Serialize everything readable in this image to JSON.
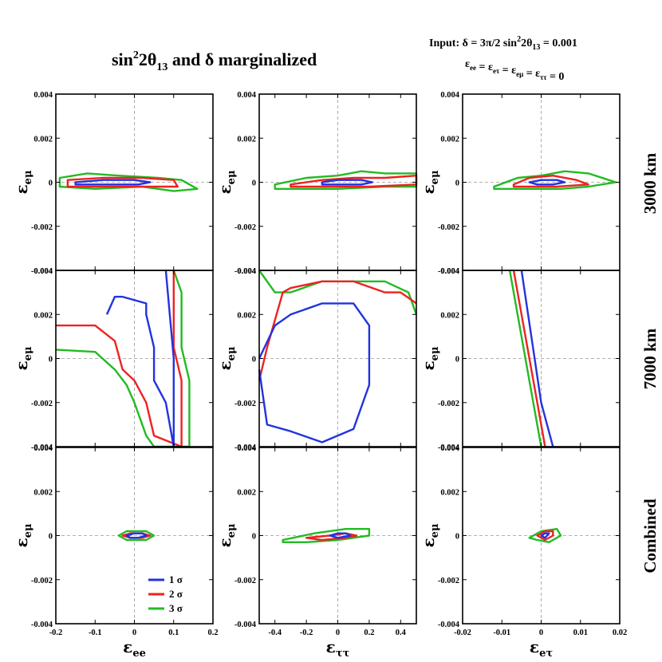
{
  "figure": {
    "title_main": "sin",
    "title_sup": "2",
    "title_mid": "2θ",
    "title_sub": "13",
    "title_end": " and δ marginalized",
    "input_line1_a": "Input:  δ =  3π/2     sin",
    "input_line1_sup": "2",
    "input_line1_b": "2θ",
    "input_line1_sub": "13",
    "input_line1_c": " = 0.001",
    "input_line2": "ε",
    "input_line2_parts": [
      {
        "t": "ε",
        "sub": "ee"
      },
      {
        "t": " = ε",
        "sub": "eτ"
      },
      {
        "t": " = ε",
        "sub": "eμ"
      },
      {
        "t": " = ε",
        "sub": "ττ"
      },
      {
        "t": " = 0",
        "sub": ""
      }
    ]
  },
  "chart_data": {
    "type": "contour",
    "y_label": {
      "base": "ε",
      "sub": "eμ"
    },
    "y_ticks": [
      "0.004",
      "0.002",
      "0",
      "-0.002",
      "-0.004"
    ],
    "y_lim": [
      -0.004,
      0.004
    ],
    "rows": [
      "3000 km",
      "7000 km",
      "Combined"
    ],
    "columns": [
      {
        "x_label_base": "ε",
        "x_label_sub": "ee",
        "x_lim": [
          -0.2,
          0.2
        ],
        "x_ticks": [
          -0.2,
          -0.1,
          0,
          0.1,
          0.2
        ],
        "x_tick_labels": [
          "-0.2",
          "-0.1",
          "0",
          "0.1",
          "0.2"
        ]
      },
      {
        "x_label_base": "ε",
        "x_label_sub": "ττ",
        "x_lim": [
          -0.5,
          0.5
        ],
        "x_ticks": [
          -0.4,
          -0.2,
          0,
          0.2,
          0.4
        ],
        "x_tick_labels": [
          "-0.4",
          "-0.2",
          "0",
          "0.2",
          "0.4"
        ]
      },
      {
        "x_label_base": "ε",
        "x_label_sub": "eτ",
        "x_lim": [
          -0.02,
          0.02
        ],
        "x_ticks": [
          -0.02,
          -0.01,
          0,
          0.01,
          0.02
        ],
        "x_tick_labels": [
          "-0.02",
          "-0.01",
          "0",
          "0.01",
          "0.02"
        ]
      }
    ],
    "legend": [
      {
        "label": "1 σ",
        "color": "#2233dd"
      },
      {
        "label": "2 σ",
        "color": "#ee2222"
      },
      {
        "label": "3 σ",
        "color": "#22bb22"
      }
    ],
    "contours": [
      [
        {
          "row": 0,
          "col": 0,
          "level": "3σ",
          "points": [
            [
              -0.19,
              0.0002
            ],
            [
              -0.12,
              0.0004
            ],
            [
              -0.04,
              0.0003
            ],
            [
              0.06,
              0.0002
            ],
            [
              0.12,
              0.0001
            ],
            [
              0.16,
              -0.0003
            ],
            [
              0.1,
              -0.0004
            ],
            [
              0.02,
              -0.0002
            ],
            [
              -0.1,
              -0.0003
            ],
            [
              -0.19,
              -0.0002
            ]
          ]
        },
        {
          "row": 0,
          "col": 0,
          "level": "2σ",
          "points": [
            [
              -0.17,
              0.0001
            ],
            [
              -0.08,
              0.0002
            ],
            [
              0.02,
              0.0002
            ],
            [
              0.1,
              0.0001
            ],
            [
              0.11,
              -0.0002
            ],
            [
              0.04,
              -0.0002
            ],
            [
              -0.06,
              -0.0002
            ],
            [
              -0.17,
              -0.0002
            ]
          ]
        },
        {
          "row": 0,
          "col": 0,
          "level": "1σ",
          "points": [
            [
              -0.15,
              0.0
            ],
            [
              -0.08,
              0.0001
            ],
            [
              0.0,
              0.0001
            ],
            [
              0.04,
              0.0
            ],
            [
              0.01,
              -0.0001
            ],
            [
              -0.08,
              -0.0001
            ],
            [
              -0.15,
              -0.0001
            ]
          ]
        },
        {
          "row": 0,
          "col": 1,
          "level": "3σ",
          "points": [
            [
              -0.4,
              -0.0001
            ],
            [
              -0.2,
              0.0002
            ],
            [
              0.0,
              0.0003
            ],
            [
              0.15,
              0.0005
            ],
            [
              0.3,
              0.0004
            ],
            [
              0.5,
              0.0004
            ],
            [
              0.5,
              -0.0002
            ],
            [
              0.3,
              -0.0002
            ],
            [
              0.0,
              -0.0003
            ],
            [
              -0.2,
              -0.0003
            ],
            [
              -0.4,
              -0.0003
            ]
          ]
        },
        {
          "row": 0,
          "col": 1,
          "level": "2σ",
          "points": [
            [
              -0.3,
              -0.0001
            ],
            [
              -0.1,
              0.0001
            ],
            [
              0.1,
              0.0002
            ],
            [
              0.3,
              0.0002
            ],
            [
              0.5,
              0.0003
            ],
            [
              0.5,
              -0.0001
            ],
            [
              0.2,
              -0.0002
            ],
            [
              0.0,
              -0.0002
            ],
            [
              -0.3,
              -0.0002
            ]
          ]
        },
        {
          "row": 0,
          "col": 1,
          "level": "1σ",
          "points": [
            [
              -0.1,
              0.0
            ],
            [
              0.0,
              0.0001
            ],
            [
              0.15,
              0.0001
            ],
            [
              0.22,
              0.0
            ],
            [
              0.15,
              -0.0001
            ],
            [
              0.0,
              -0.0001
            ],
            [
              -0.1,
              -0.0001
            ]
          ]
        },
        {
          "row": 0,
          "col": 2,
          "level": "3σ",
          "points": [
            [
              -0.012,
              -0.0002
            ],
            [
              -0.006,
              0.0002
            ],
            [
              0.0,
              0.0003
            ],
            [
              0.006,
              0.0005
            ],
            [
              0.012,
              0.0004
            ],
            [
              0.019,
              0.0
            ],
            [
              0.012,
              -0.0002
            ],
            [
              0.005,
              -0.0003
            ],
            [
              -0.002,
              -0.0003
            ],
            [
              -0.012,
              -0.0003
            ]
          ]
        },
        {
          "row": 0,
          "col": 2,
          "level": "2σ",
          "points": [
            [
              -0.007,
              -0.0001
            ],
            [
              -0.003,
              0.0002
            ],
            [
              0.003,
              0.0003
            ],
            [
              0.009,
              0.0001
            ],
            [
              0.012,
              -0.0001
            ],
            [
              0.004,
              -0.0002
            ],
            [
              -0.003,
              -0.0002
            ],
            [
              -0.007,
              -0.0002
            ]
          ]
        },
        {
          "row": 0,
          "col": 2,
          "level": "1σ",
          "points": [
            [
              -0.003,
              0.0
            ],
            [
              0.0,
              0.0001
            ],
            [
              0.004,
              0.0001
            ],
            [
              0.006,
              0.0
            ],
            [
              0.003,
              -0.0001
            ],
            [
              -0.001,
              -0.0001
            ]
          ]
        }
      ],
      [
        {
          "row": 1,
          "col": 0,
          "level": "3σ",
          "points": [
            [
              -0.2,
              0.0004
            ],
            [
              -0.1,
              0.0003
            ],
            [
              -0.05,
              -0.0005
            ],
            [
              -0.02,
              -0.0012
            ],
            [
              0.0,
              -0.002
            ],
            [
              0.03,
              -0.0035
            ],
            [
              0.05,
              -0.004
            ],
            [
              0.14,
              -0.004
            ],
            [
              0.14,
              -0.001
            ],
            [
              0.12,
              0.0005
            ],
            [
              0.12,
              0.003
            ],
            [
              0.1,
              0.004
            ]
          ]
        },
        {
          "row": 1,
          "col": 0,
          "level": "2σ",
          "points": [
            [
              -0.2,
              0.0015
            ],
            [
              -0.1,
              0.0015
            ],
            [
              -0.05,
              0.0008
            ],
            [
              -0.03,
              -0.0005
            ],
            [
              0.0,
              -0.001
            ],
            [
              0.03,
              -0.002
            ],
            [
              0.05,
              -0.0035
            ],
            [
              0.12,
              -0.004
            ],
            [
              0.12,
              -0.001
            ],
            [
              0.1,
              0.0005
            ],
            [
              0.1,
              0.004
            ]
          ]
        },
        {
          "row": 1,
          "col": 0,
          "level": "1σ",
          "points": [
            [
              -0.07,
              0.002
            ],
            [
              -0.05,
              0.0028
            ],
            [
              -0.03,
              0.0028
            ],
            [
              0.03,
              0.0025
            ],
            [
              0.03,
              0.002
            ],
            [
              0.05,
              0.0005
            ],
            [
              0.05,
              -0.001
            ],
            [
              0.08,
              -0.002
            ],
            [
              0.1,
              -0.004
            ],
            [
              0.1,
              0.0
            ],
            [
              0.08,
              0.004
            ]
          ]
        },
        {
          "row": 1,
          "col": 1,
          "level": "3σ",
          "points": [
            [
              -0.5,
              0.004
            ],
            [
              -0.4,
              0.003
            ],
            [
              -0.3,
              0.003
            ],
            [
              -0.1,
              0.0035
            ],
            [
              0.1,
              0.0035
            ],
            [
              0.3,
              0.0035
            ],
            [
              0.45,
              0.003
            ],
            [
              0.5,
              0.002
            ]
          ]
        },
        {
          "row": 1,
          "col": 1,
          "level": "2σ",
          "points": [
            [
              -0.5,
              -0.001
            ],
            [
              -0.45,
              0.0005
            ],
            [
              -0.35,
              0.003
            ],
            [
              -0.3,
              0.0032
            ],
            [
              -0.1,
              0.0035
            ],
            [
              0.1,
              0.0035
            ],
            [
              0.3,
              0.003
            ],
            [
              0.4,
              0.003
            ],
            [
              0.5,
              0.0025
            ]
          ]
        },
        {
          "row": 1,
          "col": 1,
          "level": "1σ",
          "points": [
            [
              -0.5,
              -0.0005
            ],
            [
              -0.45,
              -0.003
            ],
            [
              -0.3,
              -0.0033
            ],
            [
              -0.1,
              -0.0038
            ],
            [
              0.1,
              -0.0032
            ],
            [
              0.2,
              -0.0012
            ],
            [
              0.2,
              0.0015
            ],
            [
              0.1,
              0.0025
            ],
            [
              -0.1,
              0.0025
            ],
            [
              -0.3,
              0.002
            ],
            [
              -0.4,
              0.0015
            ],
            [
              -0.5,
              0.0
            ]
          ]
        },
        {
          "row": 1,
          "col": 2,
          "level": "3σ",
          "points": [
            [
              -0.008,
              0.004
            ],
            [
              -0.002,
              -0.002
            ],
            [
              0.0,
              -0.004
            ]
          ]
        },
        {
          "row": 1,
          "col": 2,
          "level": "2σ",
          "points": [
            [
              -0.007,
              0.004
            ],
            [
              -0.001,
              -0.002
            ],
            [
              0.001,
              -0.004
            ]
          ]
        },
        {
          "row": 1,
          "col": 2,
          "level": "1σ",
          "points": [
            [
              -0.005,
              0.004
            ],
            [
              0.0,
              -0.002
            ],
            [
              0.003,
              -0.004
            ]
          ]
        }
      ],
      [
        {
          "row": 2,
          "col": 0,
          "level": "3σ",
          "points": [
            [
              -0.04,
              0.0
            ],
            [
              -0.02,
              0.0002
            ],
            [
              0.03,
              0.0002
            ],
            [
              0.05,
              0.0
            ],
            [
              0.03,
              -0.0002
            ],
            [
              -0.02,
              -0.0002
            ]
          ]
        },
        {
          "row": 2,
          "col": 0,
          "level": "2σ",
          "points": [
            [
              -0.03,
              0.0
            ],
            [
              -0.01,
              0.0001
            ],
            [
              0.02,
              0.0001
            ],
            [
              0.04,
              0.0
            ],
            [
              0.02,
              -0.0001
            ],
            [
              -0.01,
              -0.0001
            ]
          ]
        },
        {
          "row": 2,
          "col": 0,
          "level": "1σ",
          "points": [
            [
              -0.02,
              0.0
            ],
            [
              0.0,
              0.0001
            ],
            [
              0.02,
              0.0001
            ],
            [
              0.03,
              0.0
            ],
            [
              0.01,
              -0.0001
            ],
            [
              -0.01,
              -0.0001
            ]
          ]
        },
        {
          "row": 2,
          "col": 1,
          "level": "3σ",
          "points": [
            [
              -0.35,
              -0.0002
            ],
            [
              -0.15,
              0.0001
            ],
            [
              0.05,
              0.0003
            ],
            [
              0.2,
              0.0003
            ],
            [
              0.2,
              0.0
            ],
            [
              0.0,
              -0.0002
            ],
            [
              -0.2,
              -0.0003
            ],
            [
              -0.35,
              -0.0003
            ]
          ]
        },
        {
          "row": 2,
          "col": 1,
          "level": "2σ",
          "points": [
            [
              -0.2,
              -0.0001
            ],
            [
              -0.05,
              0.0
            ],
            [
              0.05,
              0.0001
            ],
            [
              0.12,
              0.0
            ],
            [
              0.05,
              -0.0001
            ],
            [
              -0.1,
              -0.0002
            ]
          ]
        },
        {
          "row": 2,
          "col": 1,
          "level": "1σ",
          "points": [
            [
              -0.05,
              0.0
            ],
            [
              0.0,
              0.0001
            ],
            [
              0.05,
              0.0001
            ],
            [
              0.08,
              0.0
            ],
            [
              0.0,
              -0.0001
            ]
          ]
        },
        {
          "row": 2,
          "col": 2,
          "level": "3σ",
          "points": [
            [
              -0.003,
              -0.0001
            ],
            [
              0.0,
              0.0002
            ],
            [
              0.004,
              0.0003
            ],
            [
              0.005,
              0.0
            ],
            [
              0.002,
              -0.0003
            ],
            [
              -0.001,
              -0.0002
            ]
          ]
        },
        {
          "row": 2,
          "col": 2,
          "level": "2σ",
          "points": [
            [
              -0.001,
              0.0
            ],
            [
              0.001,
              0.0002
            ],
            [
              0.003,
              0.0002
            ],
            [
              0.003,
              0.0
            ],
            [
              0.001,
              -0.0002
            ]
          ]
        },
        {
          "row": 2,
          "col": 2,
          "level": "1σ",
          "points": [
            [
              0.0,
              0.0
            ],
            [
              0.001,
              0.0001
            ],
            [
              0.002,
              0.0001
            ],
            [
              0.001,
              -0.0001
            ]
          ]
        }
      ]
    ]
  }
}
